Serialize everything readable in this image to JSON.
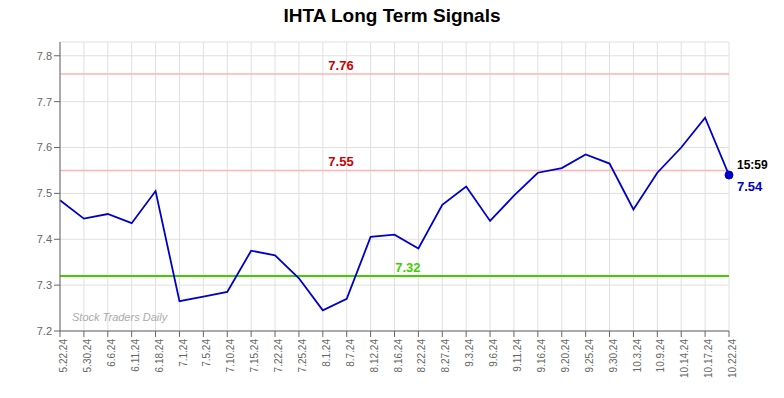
{
  "chart_data": {
    "type": "line",
    "title": "IHTA Long Term Signals",
    "categories": [
      "5.22.24",
      "5.30.24",
      "6.6.24",
      "6.11.24",
      "6.18.24",
      "7.1.24",
      "7.5.24",
      "7.10.24",
      "7.15.24",
      "7.22.24",
      "7.25.24",
      "8.1.24",
      "8.7.24",
      "8.12.24",
      "8.16.24",
      "8.22.24",
      "8.27.24",
      "9.3.24",
      "9.6.24",
      "9.11.24",
      "9.16.24",
      "9.20.24",
      "9.25.24",
      "9.30.24",
      "10.3.24",
      "10.9.24",
      "10.14.24",
      "10.17.24",
      "10.22.24"
    ],
    "values": [
      7.485,
      7.445,
      7.455,
      7.435,
      7.505,
      7.265,
      7.275,
      7.285,
      7.375,
      7.365,
      7.315,
      7.245,
      7.27,
      7.405,
      7.41,
      7.38,
      7.475,
      7.515,
      7.44,
      7.495,
      7.545,
      7.555,
      7.585,
      7.565,
      7.465,
      7.545,
      7.6,
      7.665,
      7.54
    ],
    "color": "#0000cc",
    "ylim": [
      7.2,
      7.83
    ],
    "yticks": [
      7.2,
      7.3,
      7.4,
      7.5,
      7.6,
      7.7,
      7.8
    ],
    "grid": true,
    "marker": "last",
    "reference_lines": [
      {
        "value": 7.76,
        "label": "7.76",
        "color": "#ffb3b3",
        "label_color": "#cc0000"
      },
      {
        "value": 7.55,
        "label": "7.55",
        "color": "#ffb3b3",
        "label_color": "#cc0000"
      },
      {
        "value": 7.32,
        "label": "7.32",
        "color": "#44cc00",
        "label_color": "#44cc00"
      }
    ],
    "annotations": [
      {
        "text": "15:59",
        "color": "#000000"
      },
      {
        "text": "7.54",
        "color": "#0000cc"
      }
    ],
    "watermark": "Stock Traders Daily"
  }
}
